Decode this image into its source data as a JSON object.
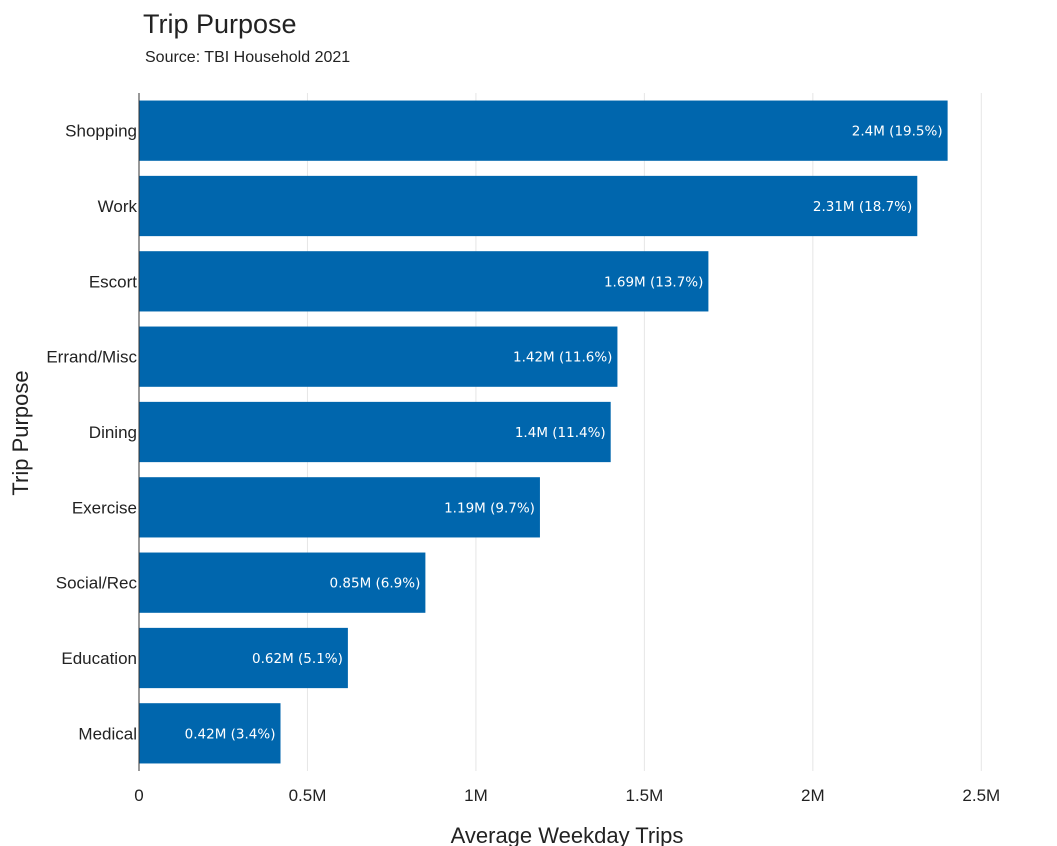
{
  "chart_data": {
    "type": "bar",
    "orientation": "horizontal",
    "title": "Trip Purpose",
    "subtitle": "Source: TBI Household 2021",
    "xlabel": "Average Weekday Trips",
    "ylabel": "Trip Purpose",
    "categories": [
      "Shopping",
      "Work",
      "Escort",
      "Errand/Misc",
      "Dining",
      "Exercise",
      "Social/Rec",
      "Education",
      "Medical"
    ],
    "values": [
      2400000,
      2310000,
      1690000,
      1420000,
      1400000,
      1190000,
      850000,
      620000,
      420000
    ],
    "data_labels": [
      "2.4M (19.5%)",
      "2.31M (18.7%)",
      "1.69M (13.7%)",
      "1.42M (11.6%)",
      "1.4M (11.4%)",
      "1.19M (9.7%)",
      "0.85M (6.9%)",
      "0.62M (5.1%)",
      "0.42M (3.4%)"
    ],
    "xlim": [
      0,
      2600000
    ],
    "x_ticks": [
      0,
      500000,
      1000000,
      1500000,
      2000000,
      2500000
    ],
    "x_tick_labels": [
      "0",
      "0.5M",
      "1M",
      "1.5M",
      "2M",
      "2.5M"
    ],
    "grid": true,
    "legend": "none",
    "bar_color": "#0066ad"
  }
}
